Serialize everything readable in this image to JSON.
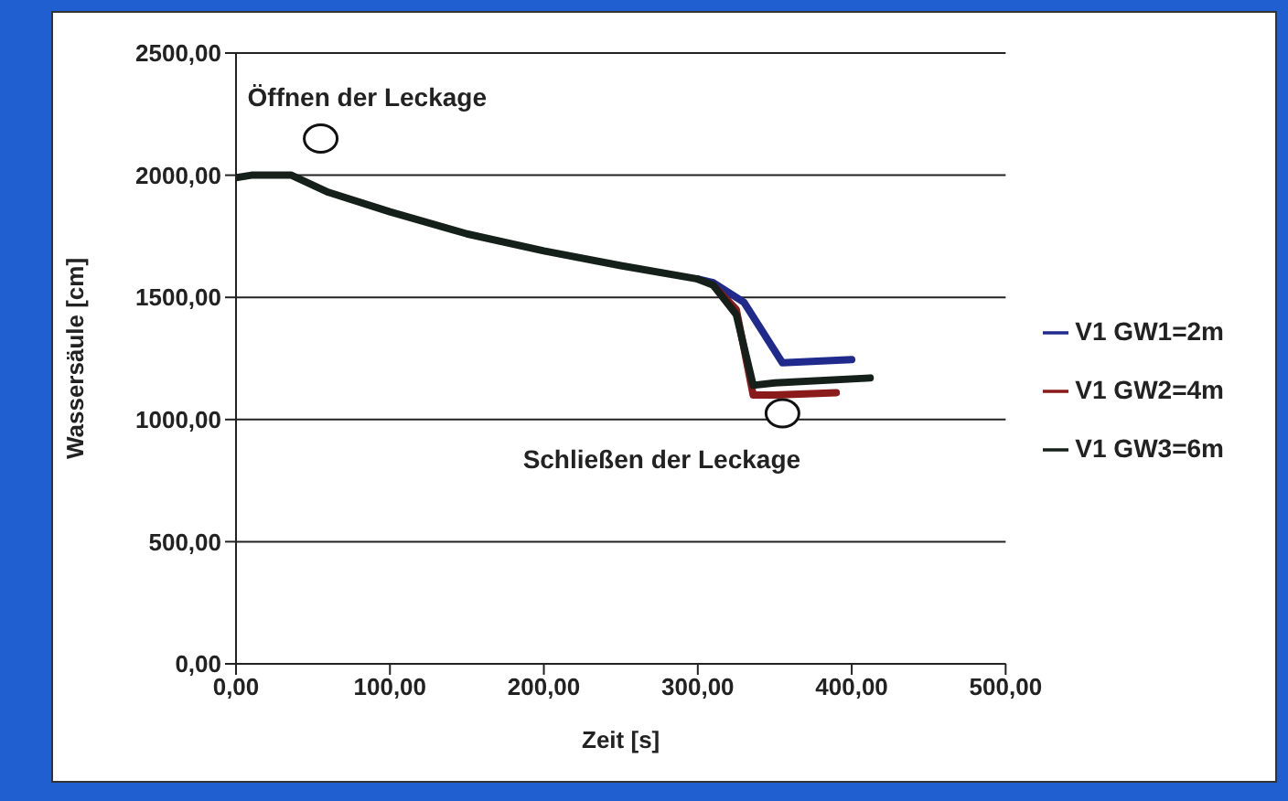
{
  "chart_data": {
    "type": "line",
    "xlabel": "Zeit [s]",
    "ylabel": "Wassersäule [cm]",
    "xlim": [
      0,
      500
    ],
    "xticks": [
      {
        "value": 0,
        "label": "0,00"
      },
      {
        "value": 100,
        "label": "100,00"
      },
      {
        "value": 200,
        "label": "200,00"
      },
      {
        "value": 300,
        "label": "300,00"
      },
      {
        "value": 400,
        "label": "400,00"
      },
      {
        "value": 500,
        "label": "500,00"
      }
    ],
    "ylim": [
      0,
      2500
    ],
    "yticks": [
      {
        "value": 0,
        "label": "0,00"
      },
      {
        "value": 500,
        "label": "500,00"
      },
      {
        "value": 1000,
        "label": "1000,00"
      },
      {
        "value": 1500,
        "label": "1500,00"
      },
      {
        "value": 2000,
        "label": "2000,00"
      },
      {
        "value": 2500,
        "label": "2500,00"
      }
    ],
    "grid": "y",
    "legend": "right",
    "marker": "none",
    "line_style": "solid",
    "series": [
      {
        "name": "V1 GW1=2m",
        "color": "#1f2a8c",
        "x": [
          300,
          310,
          330,
          355,
          400
        ],
        "values": [
          1575,
          1560,
          1480,
          1232,
          1245
        ]
      },
      {
        "name": "V1 GW2=4m",
        "color": "#8b1a1a",
        "x": [
          310,
          325,
          336,
          350,
          390
        ],
        "values": [
          1550,
          1450,
          1100,
          1100,
          1110
        ]
      },
      {
        "name": "V1 GW3=6m",
        "color": "#15201a",
        "x": [
          0,
          10,
          36,
          60,
          100,
          150,
          200,
          250,
          300,
          310,
          325,
          336,
          350,
          412
        ],
        "values": [
          1990,
          2000,
          2000,
          1930,
          1850,
          1760,
          1690,
          1630,
          1575,
          1550,
          1430,
          1140,
          1150,
          1170
        ]
      }
    ],
    "annotations": [
      {
        "text": "Öffnen der Leckage",
        "x": 36,
        "y": 2000
      },
      {
        "text": "Schließen der Leckage",
        "x": 336,
        "y": 1100
      }
    ]
  }
}
